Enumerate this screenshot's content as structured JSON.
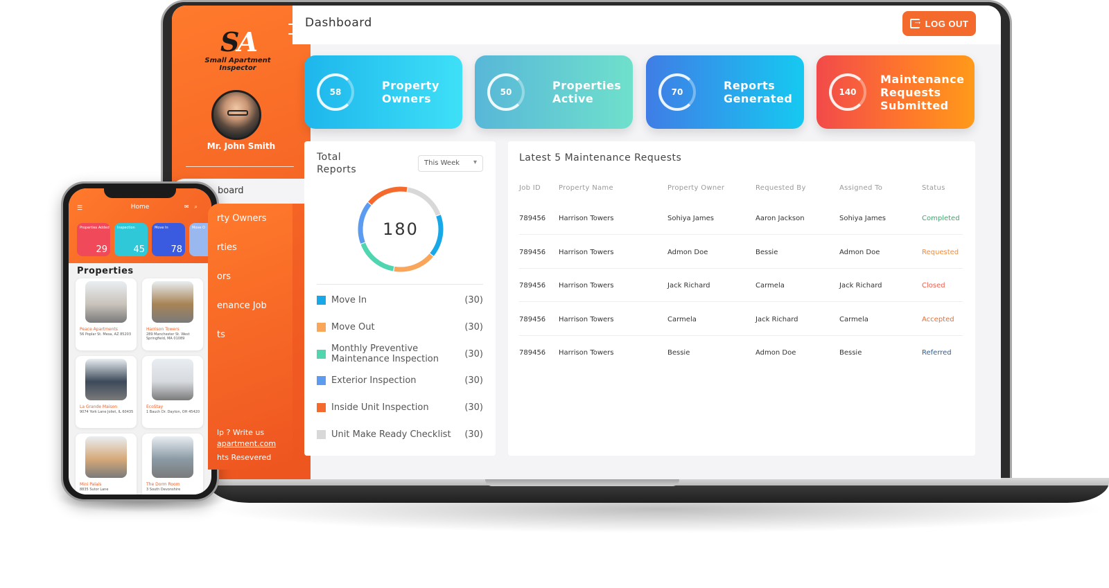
{
  "sidebar": {
    "logo_mark": "SA",
    "logo_text": "Small Apartment Inspector",
    "user_name": "Mr. John Smith",
    "nav": [
      "Dashboard",
      "Property Owners",
      "Properties",
      "Inspectors",
      "Maintenance Job",
      "Reports"
    ],
    "nav_visible": [
      "board",
      "rty Owners",
      "rties",
      "ors",
      "enance Job",
      "ts"
    ],
    "footer_help": "lp ? Write us",
    "footer_email": "apartment.com",
    "footer_rights": "hts Resevered"
  },
  "header": {
    "title": "Dashboard",
    "logout_label": "LOG OUT"
  },
  "stats": [
    {
      "value": "58",
      "label": "Property Owners",
      "fill": 0.85
    },
    {
      "value": "50",
      "label": "Properties Active",
      "fill": 0.9
    },
    {
      "value": "70",
      "label": "Reports Generated",
      "fill": 0.8
    },
    {
      "value": "140",
      "label": "Maintenance Requests Submitted",
      "fill": 0.95
    }
  ],
  "reports": {
    "title": "Total Reports",
    "period": "This Week",
    "total": "180",
    "legend": [
      {
        "label": "Move In",
        "count": "(30)",
        "color": "#18a8e8"
      },
      {
        "label": "Move Out",
        "count": "(30)",
        "color": "#f9a65a"
      },
      {
        "label": "Monthly Preventive Maintenance Inspection",
        "count": "(30)",
        "color": "#4fd6b0"
      },
      {
        "label": "Exterior Inspection",
        "count": "(30)",
        "color": "#5b9cf0"
      },
      {
        "label": "Inside Unit Inspection",
        "count": "(30)",
        "color": "#f46a2c"
      },
      {
        "label": "Unit Make Ready Checklist",
        "count": "(30)",
        "color": "#d8d8d8"
      }
    ]
  },
  "maintenance": {
    "title": "Latest 5 Maintenance Requests",
    "columns": [
      "Job ID",
      "Property Name",
      "Property Owner",
      "Requested By",
      "Assigned To",
      "Status"
    ],
    "rows": [
      {
        "job_id": "789456",
        "property": "Harrison Towers",
        "owner": "Sohiya James",
        "requested_by": "Aaron Jackson",
        "assigned_to": "Sohiya James",
        "status": "Completed",
        "status_color": "#3aa86b"
      },
      {
        "job_id": "789456",
        "property": "Harrison Towers",
        "owner": "Admon Doe",
        "requested_by": "Bessie",
        "assigned_to": "Admon Doe",
        "status": "Requested",
        "status_color": "#f58b3a"
      },
      {
        "job_id": "789456",
        "property": "Harrison Towers",
        "owner": "Jack Richard",
        "requested_by": "Carmela",
        "assigned_to": "Jack Richard",
        "status": "Closed",
        "status_color": "#f05a4a"
      },
      {
        "job_id": "789456",
        "property": "Harrison Towers",
        "owner": "Carmela",
        "requested_by": "Jack Richard",
        "assigned_to": "Carmela",
        "status": "Accepted",
        "status_color": "#f06a2a"
      },
      {
        "job_id": "789456",
        "property": "Harrison Towers",
        "owner": "Bessie",
        "requested_by": "Admon Doe",
        "assigned_to": "Bessie",
        "status": "Referred",
        "status_color": "#2a5d9a"
      }
    ]
  },
  "phone": {
    "title": "Home",
    "tiles": [
      {
        "label": "Properties Added",
        "value": "29",
        "color": "#f04a5a"
      },
      {
        "label": "Inspection",
        "value": "45",
        "color": "#2ec8d8"
      },
      {
        "label": "Move In",
        "value": "78",
        "color": "#3a5ae0"
      },
      {
        "label": "Move O",
        "value": "",
        "color": "#9ab8f0"
      }
    ],
    "section": "Properties",
    "properties": [
      {
        "name": "Peace Apartments",
        "address": "56 Poplar St. Mesa, AZ 85203",
        "color": "#c9c3bb"
      },
      {
        "name": "Harrison Towers",
        "address": "289 Manchester St. West Springfield, MA 01089",
        "color": "#a88456"
      },
      {
        "name": "La Grande Maison",
        "address": "9074 York Lane Joliet, IL 60435",
        "color": "#3d4a5a"
      },
      {
        "name": "EcoStay",
        "address": "1 Bauch Dr. Dayton, OH 45420",
        "color": "#d7dade"
      },
      {
        "name": "Mini Palais",
        "address": "8835 Sutor Lane",
        "color": "#d6a978"
      },
      {
        "name": "The Dorm Room",
        "address": "3 South Devonshire",
        "color": "#8b9aa5"
      }
    ]
  }
}
